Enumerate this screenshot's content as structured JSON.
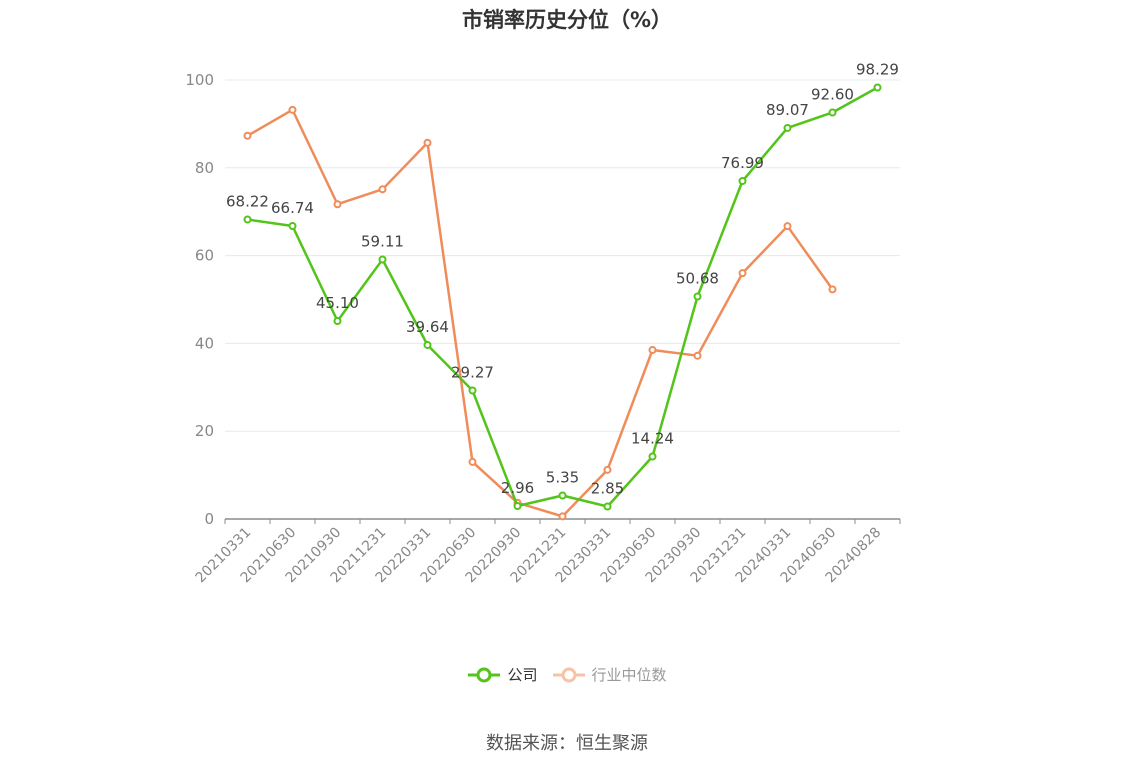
{
  "chart_data": {
    "type": "line",
    "title": "市销率历史分位（%）",
    "categories": [
      "20210331",
      "20210630",
      "20210930",
      "20211231",
      "20220331",
      "20220630",
      "20220930",
      "20221231",
      "20230331",
      "20230630",
      "20230930",
      "20231231",
      "20240331",
      "20240630",
      "20240828"
    ],
    "ylim": [
      0,
      100
    ],
    "yticks": [
      0,
      20,
      40,
      60,
      80,
      100
    ],
    "grid": true,
    "legend_position": "bottom",
    "series": [
      {
        "name": "公司",
        "color": "#52c41a",
        "values": [
          68.22,
          66.74,
          45.1,
          59.11,
          39.64,
          29.27,
          2.96,
          5.35,
          2.85,
          14.24,
          50.68,
          76.99,
          89.07,
          92.6,
          98.29
        ],
        "labels": [
          "68.22",
          "66.74",
          "45.10",
          "59.11",
          "39.64",
          "29.27",
          "2.96",
          "5.35",
          "2.85",
          "14.24",
          "50.68",
          "76.99",
          "89.07",
          "92.60",
          "98.29"
        ]
      },
      {
        "name": "行业中位数",
        "color": "#f08c5a",
        "values": [
          87.3,
          93.2,
          71.7,
          75.1,
          85.7,
          13.0,
          3.7,
          0.6,
          11.2,
          38.5,
          37.2,
          56.0,
          66.7,
          52.3,
          null
        ]
      }
    ]
  },
  "source": "数据来源：恒生聚源"
}
